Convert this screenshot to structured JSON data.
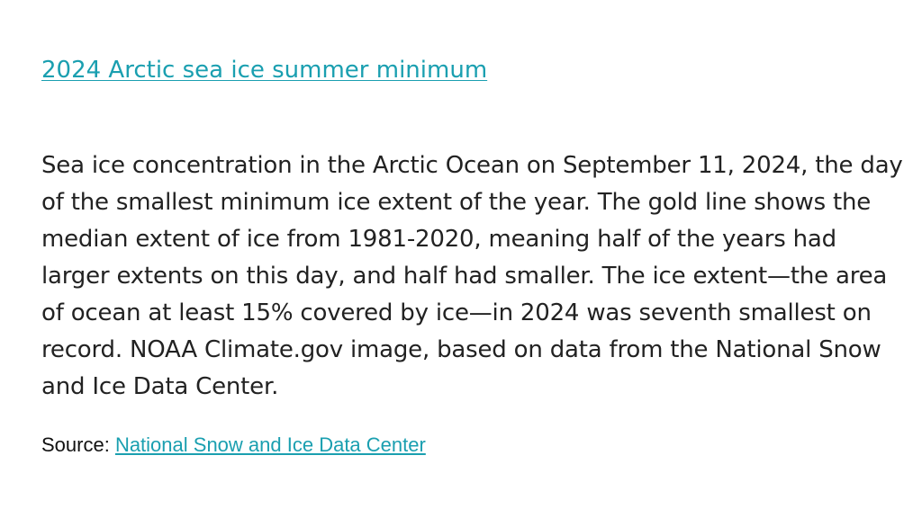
{
  "slide": {
    "title_link": "2024 Arctic sea ice summer minimum",
    "body": "Sea ice concentration in the Arctic Ocean on September 11, 2024, the day of the smallest minimum ice extent of the year. The gold line shows the median extent of ice from 1981-2020, meaning half of the years had larger extents on this day, and half had smaller. The ice extent—the area of ocean at least 15% covered by ice—in 2024 was seventh smallest on record. NOAA Climate.gov image, based on data from the National Snow and Ice Data Center.",
    "source_label": "Source:",
    "source_link": "National Snow and Ice Data Center"
  },
  "colors": {
    "link": "#1a9fb0",
    "text": "#222222",
    "background": "#ffffff"
  }
}
